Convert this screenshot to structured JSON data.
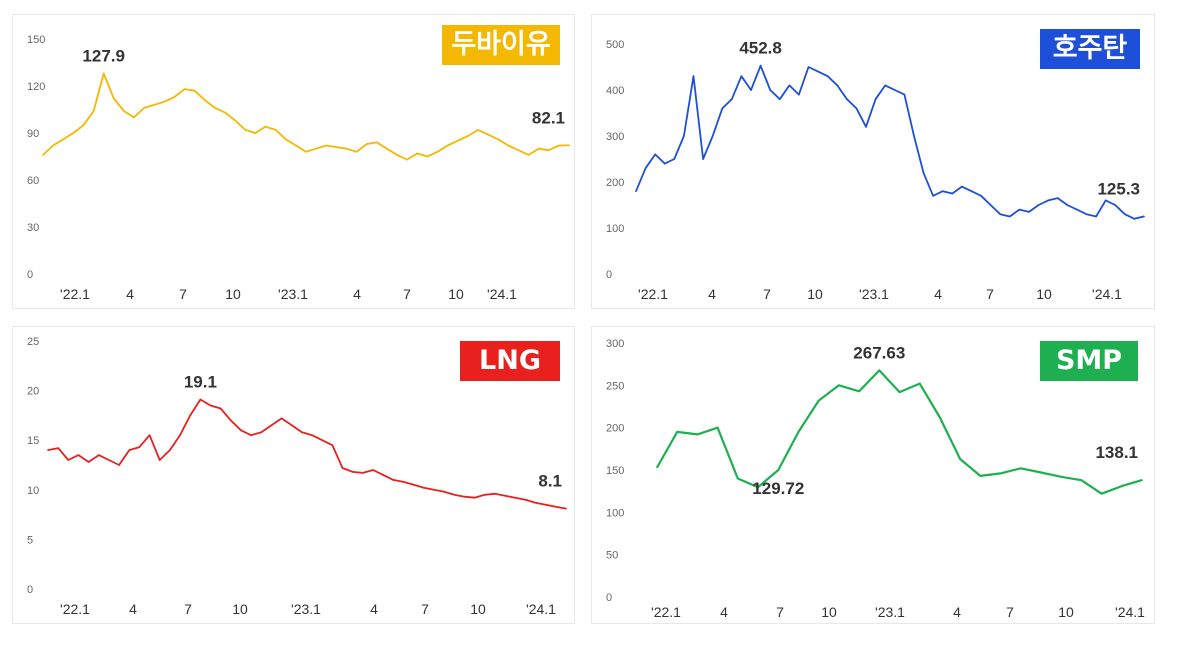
{
  "chart_data": [
    {
      "type": "line",
      "title": "두바이유",
      "color": "#F5B800",
      "ylim": [
        0,
        150
      ],
      "yticks": [
        "0",
        "30",
        "60",
        "90",
        "120",
        "150"
      ],
      "xticks": [
        "'22.1",
        "4",
        "7",
        "10",
        "'23.1",
        "4",
        "7",
        "10",
        "'24.1"
      ],
      "annotations": [
        {
          "text": "127.9",
          "at": "peak"
        },
        {
          "text": "82.1",
          "at": "last"
        }
      ],
      "series": [
        {
          "values": [
            76,
            82,
            86,
            90,
            95,
            104,
            127.9,
            112,
            104,
            100,
            106,
            108,
            110,
            113,
            118,
            117,
            111,
            106,
            103,
            98,
            92,
            90,
            94,
            92,
            86,
            82,
            78,
            80,
            82,
            81,
            80,
            78,
            83,
            84,
            80,
            76,
            73,
            77,
            75,
            78,
            82,
            85,
            88,
            92,
            89,
            86,
            82,
            79,
            76,
            80,
            79,
            82,
            82.1
          ]
        }
      ]
    },
    {
      "type": "line",
      "title": "호주탄",
      "color": "#1E4FD8",
      "ylim": [
        0,
        500
      ],
      "yticks": [
        "0",
        "100",
        "200",
        "300",
        "400",
        "500"
      ],
      "xticks": [
        "'22.1",
        "4",
        "7",
        "10",
        "'23.1",
        "4",
        "7",
        "10",
        "'24.1"
      ],
      "annotations": [
        {
          "text": "452.8",
          "at": "peak"
        },
        {
          "text": "125.3",
          "at": "last"
        }
      ],
      "series": [
        {
          "values": [
            180,
            230,
            260,
            240,
            250,
            300,
            430,
            250,
            300,
            360,
            380,
            430,
            400,
            452.8,
            400,
            380,
            410,
            390,
            450,
            440,
            430,
            410,
            380,
            360,
            320,
            380,
            410,
            400,
            390,
            300,
            220,
            170,
            180,
            175,
            190,
            180,
            170,
            150,
            130,
            125,
            140,
            135,
            150,
            160,
            165,
            150,
            140,
            130,
            125,
            160,
            150,
            130,
            120,
            125.3
          ]
        }
      ]
    },
    {
      "type": "line",
      "title": "LNG",
      "color": "#E8201E",
      "ylim": [
        0,
        25
      ],
      "yticks": [
        "0",
        "5",
        "10",
        "15",
        "20",
        "25"
      ],
      "xticks": [
        "'22.1",
        "4",
        "7",
        "10",
        "'23.1",
        "4",
        "7",
        "10",
        "'24.1"
      ],
      "annotations": [
        {
          "text": "19.1",
          "at": "peak"
        },
        {
          "text": "8.1",
          "at": "last"
        }
      ],
      "series": [
        {
          "values": [
            14,
            14.2,
            13,
            13.5,
            12.8,
            13.5,
            13,
            12.5,
            14,
            14.3,
            15.5,
            13,
            14,
            15.5,
            17.5,
            19.1,
            18.5,
            18.2,
            17,
            16,
            15.5,
            15.8,
            16.5,
            17.2,
            16.5,
            15.8,
            15.5,
            15,
            14.5,
            12.2,
            11.8,
            11.7,
            12,
            11.5,
            11,
            10.8,
            10.5,
            10.2,
            10,
            9.8,
            9.5,
            9.3,
            9.2,
            9.5,
            9.6,
            9.4,
            9.2,
            9.0,
            8.7,
            8.5,
            8.3,
            8.1
          ]
        }
      ]
    },
    {
      "type": "line",
      "title": "SMP",
      "color": "#1EB050",
      "ylim": [
        0,
        300
      ],
      "yticks": [
        "0",
        "50",
        "100",
        "150",
        "200",
        "250",
        "300"
      ],
      "xticks": [
        "'22.1",
        "4",
        "7",
        "10",
        "'23.1",
        "4",
        "7",
        "10",
        "'24.1"
      ],
      "annotations": [
        {
          "text": "267.63",
          "at": "peak"
        },
        {
          "text": "129.72",
          "at": 6
        },
        {
          "text": "138.1",
          "at": "last"
        }
      ],
      "series": [
        {
          "values": [
            153,
            195,
            192,
            200,
            140,
            129.72,
            150,
            195,
            232,
            250,
            243,
            267.63,
            242,
            252,
            212,
            163,
            143,
            146,
            152,
            147,
            142,
            138,
            122,
            131,
            138.1
          ]
        }
      ]
    }
  ]
}
